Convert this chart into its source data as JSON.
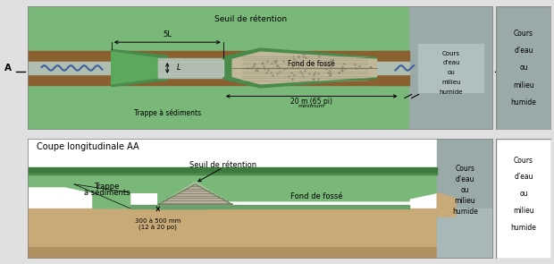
{
  "bg_outer": "#e0e0e0",
  "green_bg": "#7ab87a",
  "green_dark": "#4a8a4a",
  "green_mid": "#5ca85c",
  "brown_ditch": "#8b6030",
  "gray_culvert": "#a8b8a8",
  "gray_channel": "#b0beb0",
  "gray_rock": "#c0b898",
  "gray_cours": "#9aaaa8",
  "white": "#ffffff",
  "black": "#111111",
  "blue_water": "#4060a0",
  "soil_color": "#c8aa78",
  "soil_dark": "#b09060",
  "panel_border": "#888888",
  "label_seuil_top": "Seuil de rétention",
  "label_trappe_top": "Trappe à sédiments",
  "label_fond_top": "Fond de fossé",
  "label_5L": "5L",
  "label_L": "L",
  "label_20m": "20 m (65 pi)",
  "label_minimum": "minimum",
  "label_cours1_lines": [
    "Cours",
    "d’eau",
    "ou",
    "milieu",
    "humide"
  ],
  "label_title2": "Coupe longitudinale AA",
  "label_seuil_bot": "Seuil de rétention",
  "label_trappe_bot": "Trappe\nà sédiments",
  "label_fond_bot": "Fond de fossé",
  "label_300": "300 à 500 mm",
  "label_1220": "(12 à 20 po)",
  "label_cours2_lines": [
    "Cours",
    "d’eau",
    "ou",
    "milieu",
    "humide"
  ]
}
